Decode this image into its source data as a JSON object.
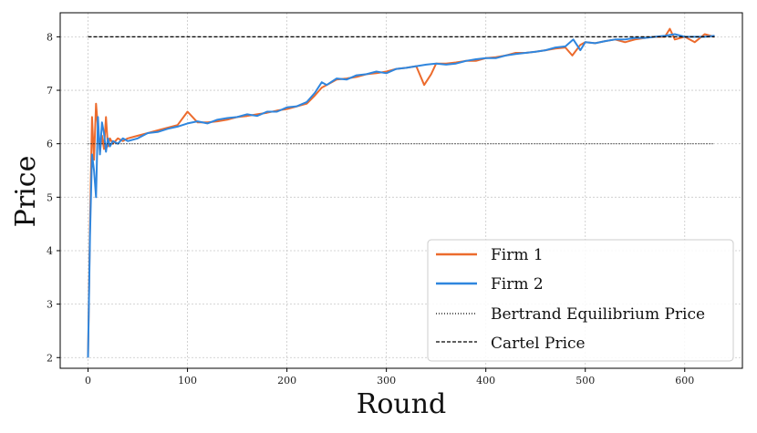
{
  "chart_data": {
    "type": "line",
    "xlabel": "Round",
    "ylabel": "Price",
    "xlim": [
      -28,
      658
    ],
    "ylim": [
      1.8,
      8.45
    ],
    "xticks": [
      0,
      100,
      200,
      300,
      400,
      500,
      600
    ],
    "yticks": [
      2,
      3,
      4,
      5,
      6,
      7,
      8
    ],
    "grid": true,
    "legend_position": "bottom-right",
    "series": [
      {
        "name": "Firm 1",
        "color": "#ec6b2d",
        "x": [
          0,
          2,
          4,
          6,
          8,
          10,
          12,
          14,
          16,
          18,
          20,
          22,
          25,
          30,
          35,
          40,
          50,
          60,
          70,
          80,
          90,
          100,
          110,
          120,
          130,
          140,
          150,
          160,
          170,
          180,
          190,
          200,
          210,
          220,
          228,
          235,
          240,
          250,
          260,
          270,
          280,
          290,
          300,
          310,
          320,
          330,
          338,
          345,
          350,
          360,
          370,
          380,
          390,
          400,
          410,
          420,
          430,
          440,
          450,
          460,
          470,
          480,
          487,
          495,
          500,
          510,
          520,
          530,
          540,
          550,
          560,
          570,
          580,
          585,
          590,
          600,
          610,
          620,
          630
        ],
        "y": [
          2.0,
          4.5,
          6.5,
          5.7,
          6.75,
          6.3,
          5.85,
          6.15,
          5.9,
          6.5,
          5.95,
          6.1,
          6.0,
          6.1,
          6.05,
          6.1,
          6.15,
          6.2,
          6.25,
          6.3,
          6.35,
          6.6,
          6.4,
          6.4,
          6.42,
          6.45,
          6.5,
          6.52,
          6.55,
          6.58,
          6.62,
          6.65,
          6.7,
          6.75,
          6.9,
          7.05,
          7.1,
          7.2,
          7.22,
          7.25,
          7.3,
          7.32,
          7.35,
          7.4,
          7.42,
          7.45,
          7.1,
          7.3,
          7.5,
          7.5,
          7.52,
          7.55,
          7.55,
          7.6,
          7.62,
          7.65,
          7.7,
          7.7,
          7.72,
          7.75,
          7.78,
          7.8,
          7.65,
          7.85,
          7.9,
          7.88,
          7.92,
          7.95,
          7.9,
          7.95,
          7.98,
          8.0,
          8.0,
          8.15,
          7.95,
          8.0,
          7.9,
          8.05,
          8.0
        ]
      },
      {
        "name": "Firm 2",
        "color": "#2f86de",
        "x": [
          0,
          2,
          4,
          6,
          8,
          10,
          12,
          14,
          16,
          18,
          20,
          22,
          25,
          30,
          35,
          40,
          50,
          60,
          70,
          80,
          90,
          100,
          110,
          120,
          130,
          140,
          150,
          160,
          170,
          180,
          190,
          200,
          210,
          220,
          228,
          235,
          240,
          250,
          260,
          270,
          280,
          290,
          300,
          310,
          320,
          330,
          340,
          350,
          360,
          370,
          380,
          390,
          400,
          410,
          420,
          430,
          440,
          450,
          460,
          470,
          480,
          488,
          495,
          500,
          510,
          520,
          530,
          540,
          550,
          560,
          570,
          580,
          590,
          600,
          610,
          620,
          630
        ],
        "y": [
          2.0,
          4.3,
          5.8,
          5.5,
          5.0,
          6.5,
          5.8,
          6.4,
          6.2,
          5.85,
          6.1,
          5.95,
          6.05,
          6.0,
          6.1,
          6.05,
          6.1,
          6.2,
          6.22,
          6.28,
          6.32,
          6.38,
          6.42,
          6.38,
          6.45,
          6.48,
          6.5,
          6.55,
          6.52,
          6.6,
          6.6,
          6.68,
          6.7,
          6.78,
          6.95,
          7.15,
          7.1,
          7.22,
          7.2,
          7.28,
          7.3,
          7.35,
          7.32,
          7.4,
          7.42,
          7.45,
          7.48,
          7.5,
          7.48,
          7.5,
          7.55,
          7.58,
          7.6,
          7.6,
          7.65,
          7.68,
          7.7,
          7.72,
          7.75,
          7.8,
          7.82,
          7.95,
          7.75,
          7.9,
          7.88,
          7.92,
          7.95,
          7.95,
          7.98,
          7.98,
          8.0,
          8.02,
          8.05,
          8.0,
          8.0,
          8.0,
          8.02
        ]
      },
      {
        "name": "Bertrand Equilibrium Price",
        "color": "#000000",
        "style": "dotted",
        "x": [
          0,
          630
        ],
        "y": [
          6,
          6
        ]
      },
      {
        "name": "Cartel Price",
        "color": "#000000",
        "style": "dashed",
        "x": [
          0,
          630
        ],
        "y": [
          8,
          8
        ]
      }
    ]
  }
}
